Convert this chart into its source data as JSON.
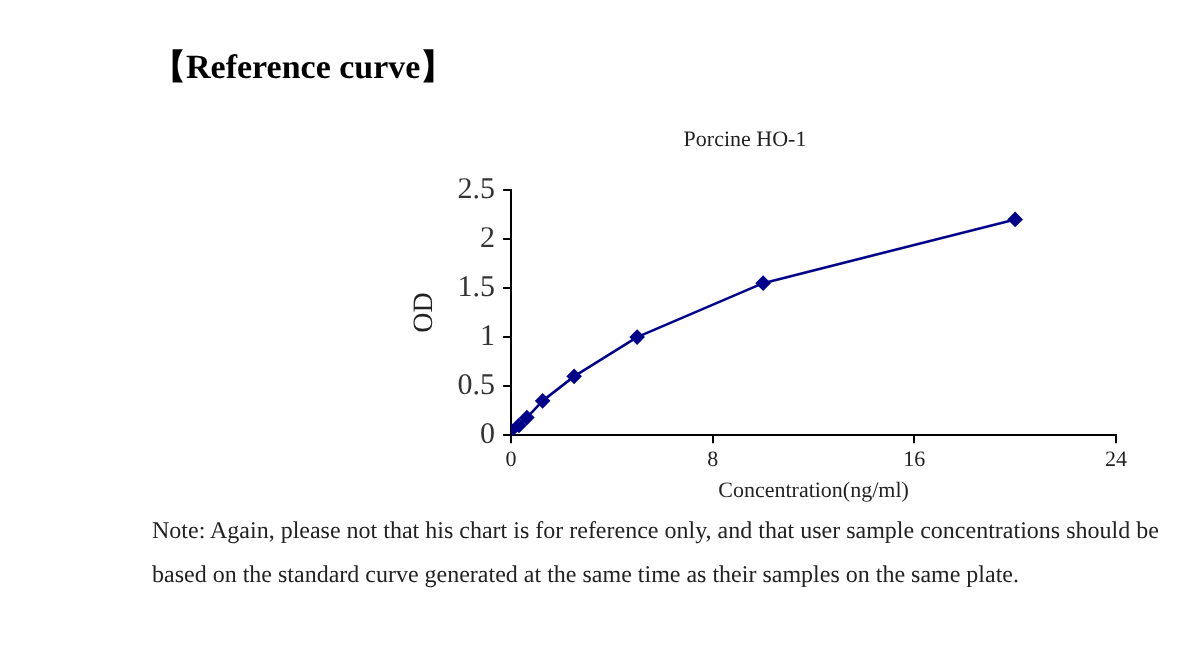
{
  "chart_data": {
    "type": "line",
    "title": "【Reference curve】",
    "subtitle": "Porcine HO-1",
    "xlabel": "Concentration(ng/ml)",
    "ylabel": "OD",
    "annotations": [
      "Note: Again, please not that his chart is for reference only, and that user sample concentrations should be based on the standard curve generated at the same time as their samples on the same plate."
    ],
    "x": [
      0,
      0.3125,
      0.625,
      1.25,
      2.5,
      5,
      10,
      20
    ],
    "series": [
      {
        "color": "#00008b",
        "values": [
          0.05,
          0.1,
          0.18,
          0.35,
          0.6,
          1.0,
          1.55,
          2.2
        ]
      }
    ],
    "xlim": [
      0,
      24
    ],
    "xticks": [
      0,
      8,
      16,
      24
    ],
    "ylim": [
      0,
      2.5
    ],
    "yticks": [
      0,
      0.5,
      1,
      1.5,
      2,
      2.5
    ],
    "grid": false,
    "legend": false,
    "marker": "diamond",
    "line_style": "solid"
  }
}
